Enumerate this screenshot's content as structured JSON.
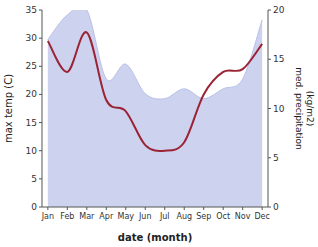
{
  "chart_data": {
    "type": "line",
    "categories": [
      "Jan",
      "Feb",
      "Mar",
      "Apr",
      "May",
      "Jun",
      "Jul",
      "Aug",
      "Sep",
      "Oct",
      "Nov",
      "Dec"
    ],
    "series": [
      {
        "type": "area",
        "axis": "y2",
        "color": "#b8c0e8",
        "values": [
          17.0,
          19.5,
          20.0,
          13.0,
          14.5,
          11.5,
          11.0,
          12.0,
          11.0,
          12.0,
          13.0,
          19.0
        ]
      },
      {
        "type": "line",
        "color": "#9b2335",
        "values": [
          29.5,
          24.0,
          31.0,
          19.0,
          17.0,
          11.0,
          10.0,
          11.5,
          20.0,
          24.0,
          24.5,
          29.0
        ]
      }
    ],
    "xlabel": "date (month)",
    "ylabel": "max temp (C)",
    "y2label": "med. precipitation\n(kg/m2)",
    "ylim": [
      0,
      35
    ],
    "yticks": [
      0,
      5,
      10,
      15,
      20,
      25,
      30,
      35
    ],
    "y2lim": [
      0,
      20
    ],
    "y2ticks": [
      0,
      5,
      10,
      15,
      20
    ],
    "grid": false
  }
}
